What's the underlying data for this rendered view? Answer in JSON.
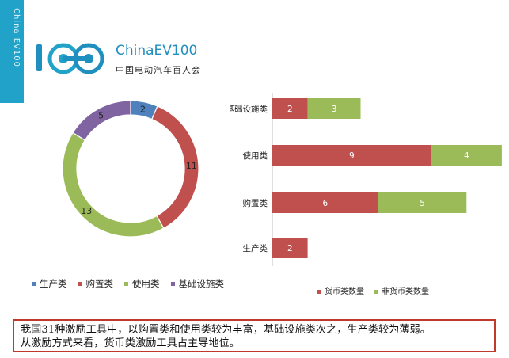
{
  "side_text": "China EV100",
  "logo": {
    "brand": "ChinaEV100",
    "subtitle": "中国电动汽车百人会"
  },
  "colors": {
    "production": "#4f81bd",
    "purchase": "#c0504d",
    "usage": "#9bbb59",
    "infrastructure": "#8064a2",
    "monetary": "#c0504d",
    "nonmonetary": "#9bbb59",
    "accent": "#21a3c9"
  },
  "chart_data": [
    {
      "type": "pie",
      "variant": "donut",
      "categories": [
        "生产类",
        "购置类",
        "使用类",
        "基础设施类"
      ],
      "values": [
        2,
        11,
        13,
        5
      ],
      "legend": [
        "生产类",
        "购置类",
        "使用类",
        "基础设施类"
      ],
      "legend_position": "bottom"
    },
    {
      "type": "bar",
      "orientation": "horizontal",
      "stacked": true,
      "categories": [
        "基础设施类",
        "使用类",
        "购置类",
        "生产类"
      ],
      "series": [
        {
          "name": "货币类数量",
          "values": [
            2,
            9,
            6,
            2
          ]
        },
        {
          "name": "非货币类数量",
          "values": [
            3,
            4,
            5,
            0
          ]
        }
      ],
      "legend_position": "bottom",
      "grid": false
    }
  ],
  "note": {
    "line1": "我国31种激励工具中，以购置类和使用类较为丰富，基础设施类次之，生产类较为薄弱。",
    "line2": "从激励方式来看，货币类激励工具占主导地位。"
  }
}
